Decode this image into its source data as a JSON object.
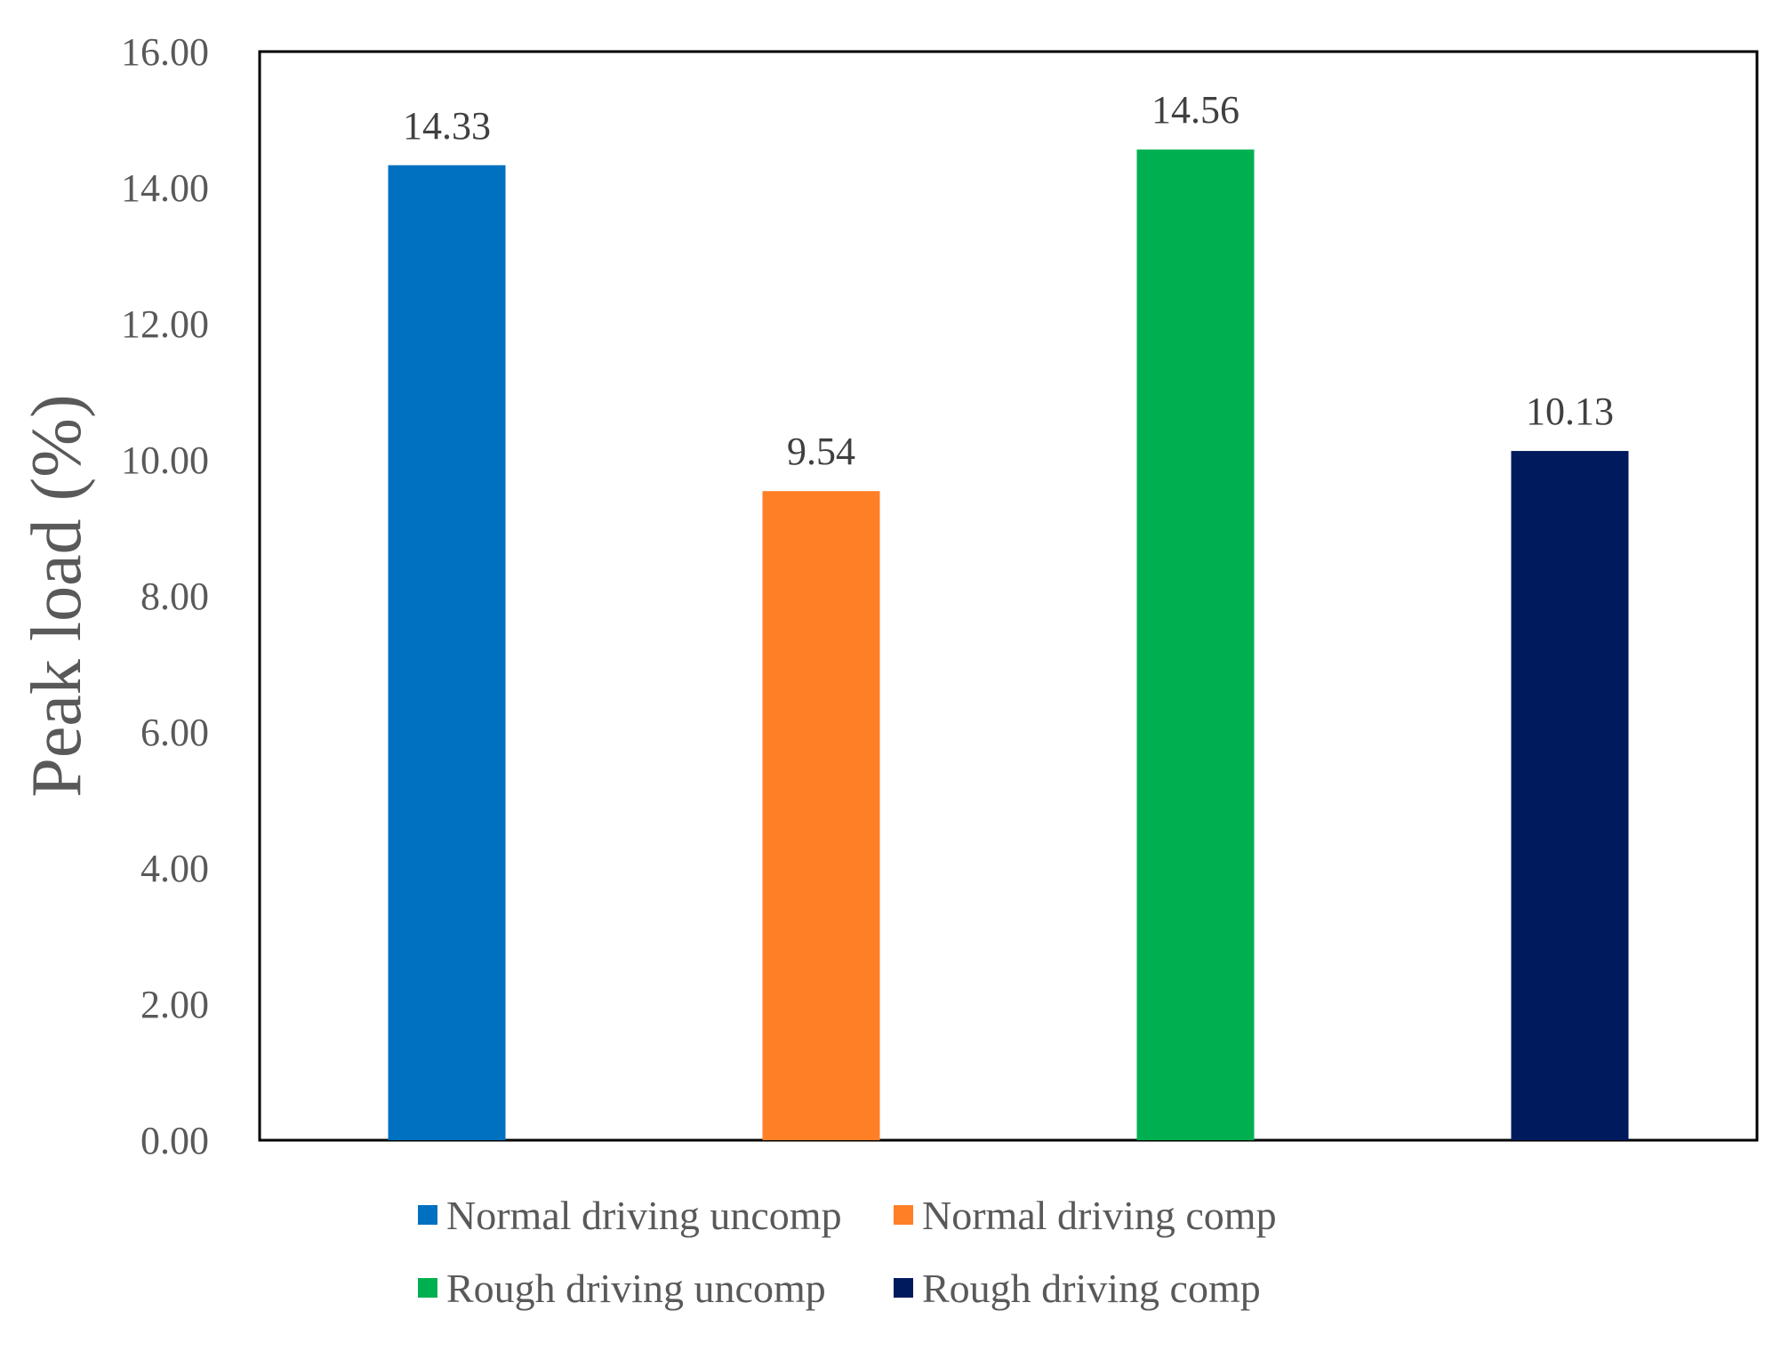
{
  "chart_data": {
    "type": "bar",
    "title": "",
    "xlabel": "",
    "ylabel": "Peak load (%)",
    "ylim": [
      0,
      16
    ],
    "yticks": [
      0,
      2,
      4,
      6,
      8,
      10,
      12,
      14,
      16
    ],
    "ytick_labels": [
      "0.00",
      "2.00",
      "4.00",
      "6.00",
      "8.00",
      "10.00",
      "12.00",
      "14.00",
      "16.00"
    ],
    "categories": [
      "Normal driving uncomp",
      "Normal driving comp",
      "Rough driving uncomp",
      "Rough driving comp"
    ],
    "values": [
      14.33,
      9.54,
      14.56,
      10.13
    ],
    "data_labels": [
      "14.33",
      "9.54",
      "14.56",
      "10.13"
    ],
    "colors": [
      "#0070C0",
      "#FF7F27",
      "#00B050",
      "#001A5E"
    ],
    "grid": false,
    "legend_position": "bottom"
  }
}
